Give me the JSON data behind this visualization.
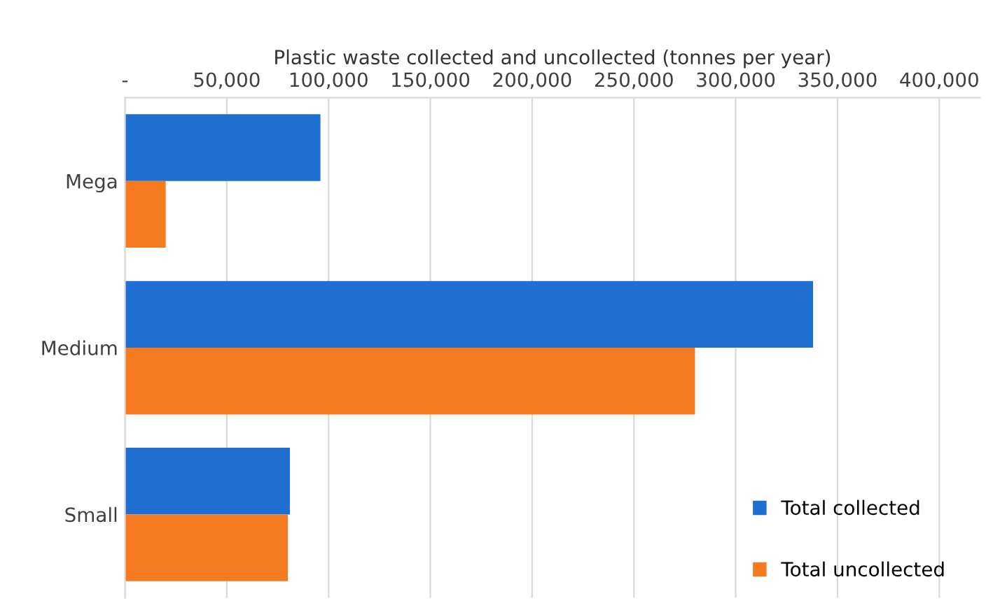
{
  "chart_data": {
    "type": "bar",
    "orientation": "horizontal",
    "xlabel": "Plastic waste collected and uncollected (tonnes per year)",
    "categories": [
      "Mega",
      "Medium",
      "Small"
    ],
    "series": [
      {
        "name": "Total collected",
        "color": "#1f6fd0",
        "values": [
          96000,
          338000,
          81000
        ]
      },
      {
        "name": "Total uncollected",
        "color": "#f57a20",
        "values": [
          20000,
          280000,
          80000
        ]
      }
    ],
    "xlim": [
      0,
      420000
    ],
    "xticks": [
      {
        "value": 0,
        "label": "-"
      },
      {
        "value": 50000,
        "label": "50,000"
      },
      {
        "value": 100000,
        "label": "100,000"
      },
      {
        "value": 150000,
        "label": "150,000"
      },
      {
        "value": 200000,
        "label": "200,000"
      },
      {
        "value": 250000,
        "label": "250,000"
      },
      {
        "value": 300000,
        "label": "300,000"
      },
      {
        "value": 350000,
        "label": "350,000"
      },
      {
        "value": 400000,
        "label": "400,000"
      }
    ],
    "grid": "x",
    "legend": "bottom right"
  }
}
